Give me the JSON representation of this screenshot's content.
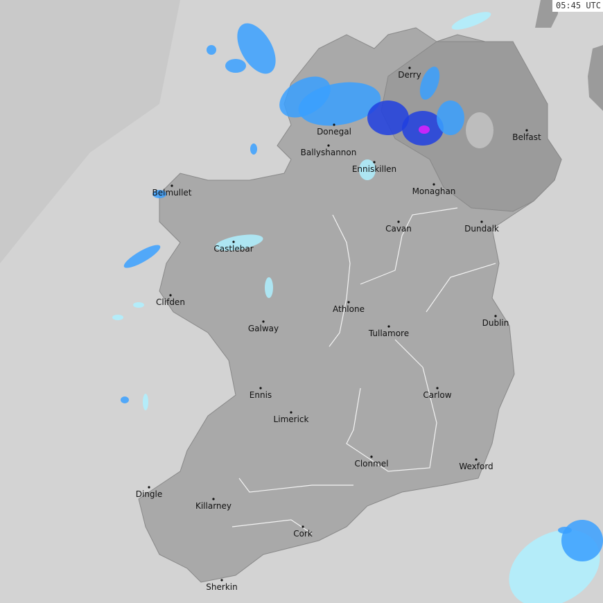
{
  "timestamp": "05:45 UTC",
  "colors": {
    "sea": "#d3d3d3",
    "offshore": "#c9c9c9",
    "land": "#a9a9a9",
    "northern_ireland": "#9b9b9b",
    "rain_light": "#aef0ff",
    "rain_moderate": "#3aa0ff",
    "rain_heavy": "#2040e0",
    "rain_intense": "#e020ff"
  },
  "cities": [
    {
      "name": "Derry"
    },
    {
      "name": "Donegal"
    },
    {
      "name": "Ballyshannon"
    },
    {
      "name": "Enniskillen"
    },
    {
      "name": "Belfast"
    },
    {
      "name": "Monaghan"
    },
    {
      "name": "Belmullet"
    },
    {
      "name": "Cavan"
    },
    {
      "name": "Dundalk"
    },
    {
      "name": "Castlebar"
    },
    {
      "name": "Clifden"
    },
    {
      "name": "Athlone"
    },
    {
      "name": "Dublin"
    },
    {
      "name": "Galway"
    },
    {
      "name": "Tullamore"
    },
    {
      "name": "Ennis"
    },
    {
      "name": "Carlow"
    },
    {
      "name": "Limerick"
    },
    {
      "name": "Clonmel"
    },
    {
      "name": "Wexford"
    },
    {
      "name": "Dingle"
    },
    {
      "name": "Killarney"
    },
    {
      "name": "Cork"
    },
    {
      "name": "Sherkin"
    }
  ]
}
